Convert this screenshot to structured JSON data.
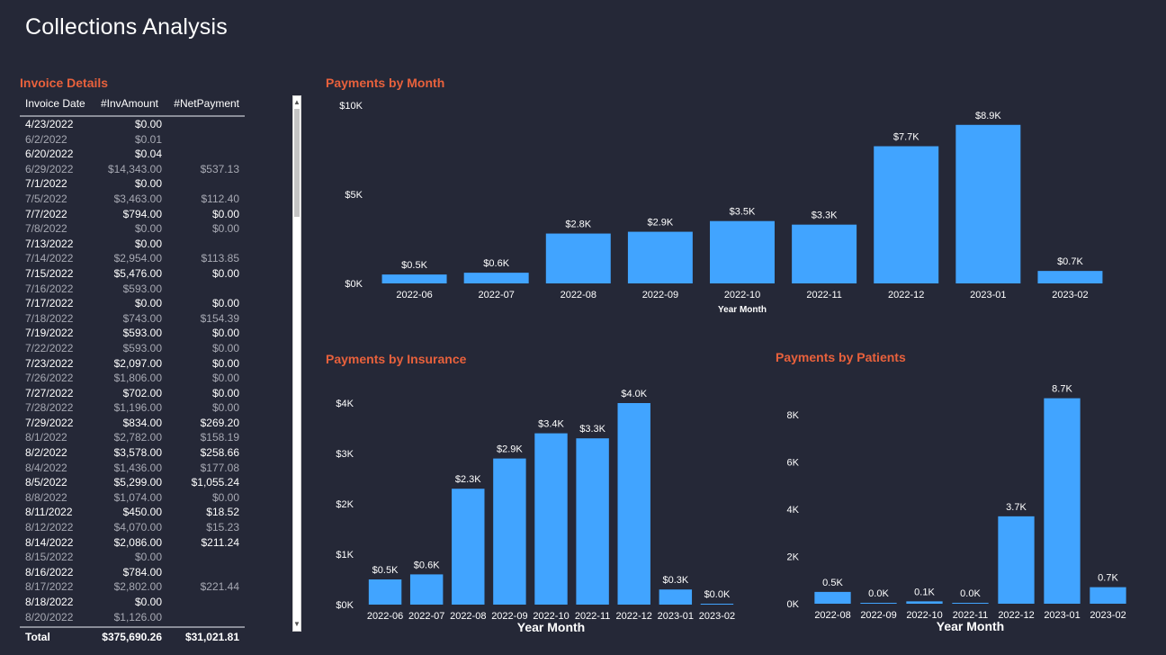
{
  "page": {
    "title": "Collections Analysis"
  },
  "table": {
    "title": "Invoice Details",
    "headers": [
      "Invoice Date",
      "#InvAmount",
      "#NetPayment"
    ],
    "rows": [
      [
        "4/23/2022",
        "$0.00",
        ""
      ],
      [
        "6/2/2022",
        "$0.01",
        ""
      ],
      [
        "6/20/2022",
        "$0.04",
        ""
      ],
      [
        "6/29/2022",
        "$14,343.00",
        "$537.13"
      ],
      [
        "7/1/2022",
        "$0.00",
        ""
      ],
      [
        "7/5/2022",
        "$3,463.00",
        "$112.40"
      ],
      [
        "7/7/2022",
        "$794.00",
        "$0.00"
      ],
      [
        "7/8/2022",
        "$0.00",
        "$0.00"
      ],
      [
        "7/13/2022",
        "$0.00",
        ""
      ],
      [
        "7/14/2022",
        "$2,954.00",
        "$113.85"
      ],
      [
        "7/15/2022",
        "$5,476.00",
        "$0.00"
      ],
      [
        "7/16/2022",
        "$593.00",
        ""
      ],
      [
        "7/17/2022",
        "$0.00",
        "$0.00"
      ],
      [
        "7/18/2022",
        "$743.00",
        "$154.39"
      ],
      [
        "7/19/2022",
        "$593.00",
        "$0.00"
      ],
      [
        "7/22/2022",
        "$593.00",
        "$0.00"
      ],
      [
        "7/23/2022",
        "$2,097.00",
        "$0.00"
      ],
      [
        "7/26/2022",
        "$1,806.00",
        "$0.00"
      ],
      [
        "7/27/2022",
        "$702.00",
        "$0.00"
      ],
      [
        "7/28/2022",
        "$1,196.00",
        "$0.00"
      ],
      [
        "7/29/2022",
        "$834.00",
        "$269.20"
      ],
      [
        "8/1/2022",
        "$2,782.00",
        "$158.19"
      ],
      [
        "8/2/2022",
        "$3,578.00",
        "$258.66"
      ],
      [
        "8/4/2022",
        "$1,436.00",
        "$177.08"
      ],
      [
        "8/5/2022",
        "$5,299.00",
        "$1,055.24"
      ],
      [
        "8/8/2022",
        "$1,074.00",
        "$0.00"
      ],
      [
        "8/11/2022",
        "$450.00",
        "$18.52"
      ],
      [
        "8/12/2022",
        "$4,070.00",
        "$15.23"
      ],
      [
        "8/14/2022",
        "$2,086.00",
        "$211.24"
      ],
      [
        "8/15/2022",
        "$0.00",
        ""
      ],
      [
        "8/16/2022",
        "$784.00",
        ""
      ],
      [
        "8/17/2022",
        "$2,802.00",
        "$221.44"
      ],
      [
        "8/18/2022",
        "$0.00",
        ""
      ],
      [
        "8/20/2022",
        "$1,126.00",
        ""
      ]
    ],
    "total": {
      "label": "Total",
      "inv_amount": "$375,690.26",
      "net_payment": "$31,021.81"
    }
  },
  "scrollbar": {
    "up_icon": "chevron-up-icon",
    "down_icon": "chevron-down-icon"
  },
  "colors": {
    "bar": "#41a4ff",
    "title": "#e8613c",
    "background": "#252837"
  },
  "chart_data": [
    {
      "type": "bar",
      "title": "Payments by Month",
      "xlabel": "Year Month",
      "ylabel": "",
      "categories": [
        "2022-06",
        "2022-07",
        "2022-08",
        "2022-09",
        "2022-10",
        "2022-11",
        "2022-12",
        "2023-01",
        "2023-02"
      ],
      "values": [
        0.5,
        0.6,
        2.8,
        2.9,
        3.5,
        3.3,
        7.7,
        8.9,
        0.7
      ],
      "data_labels": [
        "$0.5K",
        "$0.6K",
        "$2.8K",
        "$2.9K",
        "$3.5K",
        "$3.3K",
        "$7.7K",
        "$8.9K",
        "$0.7K"
      ],
      "ylim": [
        0,
        10
      ],
      "yticks": [
        0,
        5,
        10
      ],
      "ytick_labels": [
        "$0K",
        "$5K",
        "$10K"
      ],
      "grid": false
    },
    {
      "type": "bar",
      "title": "Payments by Insurance",
      "xlabel": "Year Month",
      "ylabel": "",
      "categories": [
        "2022-06",
        "2022-07",
        "2022-08",
        "2022-09",
        "2022-10",
        "2022-11",
        "2022-12",
        "2023-01",
        "2023-02"
      ],
      "values": [
        0.5,
        0.6,
        2.3,
        2.9,
        3.4,
        3.3,
        4.0,
        0.3,
        0.0
      ],
      "data_labels": [
        "$0.5K",
        "$0.6K",
        "$2.3K",
        "$2.9K",
        "$3.4K",
        "$3.3K",
        "$4.0K",
        "$0.3K",
        "$0.0K"
      ],
      "ylim": [
        0,
        4
      ],
      "yticks": [
        0,
        1,
        2,
        3,
        4
      ],
      "ytick_labels": [
        "$0K",
        "$1K",
        "$2K",
        "$3K",
        "$4K"
      ],
      "grid": false
    },
    {
      "type": "bar",
      "title": "Payments by Patients",
      "xlabel": "Year Month",
      "ylabel": "",
      "categories": [
        "2022-08",
        "2022-09",
        "2022-10",
        "2022-11",
        "2022-12",
        "2023-01",
        "2023-02"
      ],
      "values": [
        0.5,
        0.0,
        0.1,
        0.0,
        3.7,
        8.7,
        0.7
      ],
      "data_labels": [
        "0.5K",
        "0.0K",
        "0.1K",
        "0.0K",
        "3.7K",
        "8.7K",
        "0.7K"
      ],
      "ylim": [
        0,
        8
      ],
      "yticks": [
        0,
        2,
        4,
        6,
        8
      ],
      "ytick_labels": [
        "0K",
        "2K",
        "4K",
        "6K",
        "8K"
      ],
      "grid": false
    }
  ]
}
